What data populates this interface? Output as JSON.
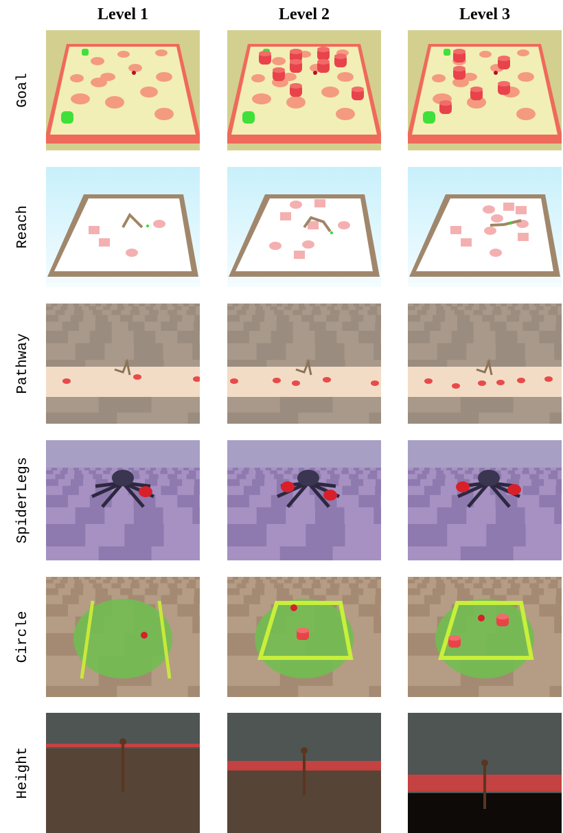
{
  "columns": [
    "Level 1",
    "Level 2",
    "Level 3"
  ],
  "rows": [
    "Goal",
    "Reach",
    "Pathway",
    "SpiderLegs",
    "Circle",
    "Height"
  ]
}
